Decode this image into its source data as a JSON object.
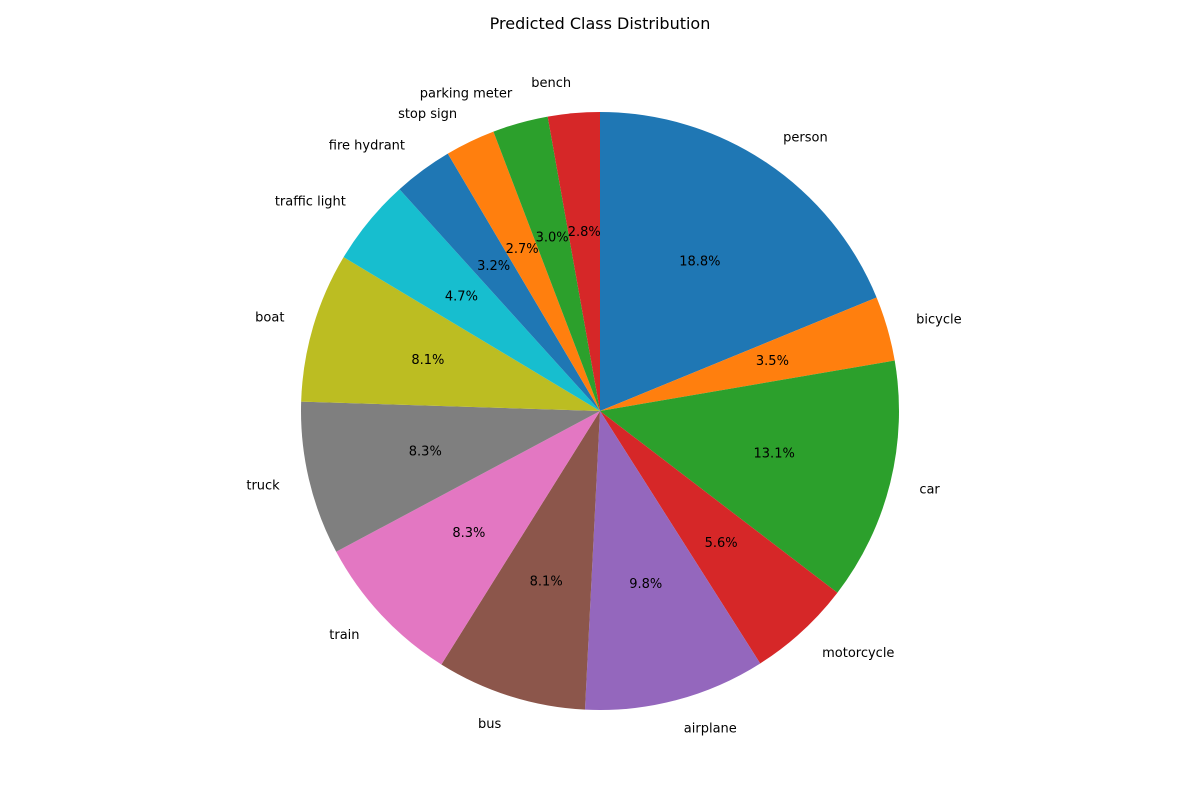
{
  "chart_data": {
    "type": "pie",
    "title": "Predicted Class Distribution",
    "start_angle_deg": 90,
    "direction": "clockwise",
    "slices": [
      {
        "label": "person",
        "value": 18.8,
        "pct_label": "18.8%",
        "color": "#1f77b4"
      },
      {
        "label": "bicycle",
        "value": 3.5,
        "pct_label": "3.5%",
        "color": "#ff7f0e"
      },
      {
        "label": "car",
        "value": 13.1,
        "pct_label": "13.1%",
        "color": "#2ca02c"
      },
      {
        "label": "motorcycle",
        "value": 5.6,
        "pct_label": "5.6%",
        "color": "#d62728"
      },
      {
        "label": "airplane",
        "value": 9.8,
        "pct_label": "9.8%",
        "color": "#9467bd"
      },
      {
        "label": "bus",
        "value": 8.1,
        "pct_label": "8.1%",
        "color": "#8c564b"
      },
      {
        "label": "train",
        "value": 8.3,
        "pct_label": "8.3%",
        "color": "#e377c2"
      },
      {
        "label": "truck",
        "value": 8.3,
        "pct_label": "8.3%",
        "color": "#7f7f7f"
      },
      {
        "label": "boat",
        "value": 8.1,
        "pct_label": "8.1%",
        "color": "#bcbd22"
      },
      {
        "label": "traffic light",
        "value": 4.7,
        "pct_label": "4.7%",
        "color": "#17becf"
      },
      {
        "label": "fire hydrant",
        "value": 3.2,
        "pct_label": "3.2%",
        "color": "#1f77b4"
      },
      {
        "label": "stop sign",
        "value": 2.7,
        "pct_label": "2.7%",
        "color": "#ff7f0e"
      },
      {
        "label": "parking meter",
        "value": 3.0,
        "pct_label": "3.0%",
        "color": "#2ca02c"
      },
      {
        "label": "bench",
        "value": 2.8,
        "pct_label": "2.8%",
        "color": "#d62728"
      }
    ]
  }
}
